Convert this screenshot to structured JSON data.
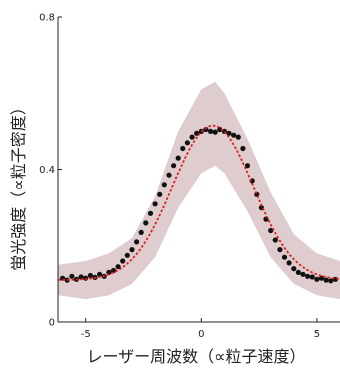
{
  "chart_data": {
    "type": "scatter",
    "title": "",
    "xlabel": "レーザー周波数（∝粒子速度）",
    "ylabel": "蛍光強度（∝粒子密度）",
    "xlim": [
      -6.2,
      6.0
    ],
    "ylim": [
      0,
      0.8
    ],
    "xticks": [
      -5,
      0,
      5
    ],
    "yticks": [
      0,
      0.4,
      0.8
    ],
    "ytick_labels": [
      "0",
      "0.4",
      "0.8"
    ],
    "grid": false,
    "legend": "none",
    "colors": {
      "band": "#d8c3c6",
      "points": "#111111",
      "fit": "#e02020"
    },
    "band": {
      "x": [
        -6.2,
        -5.0,
        -4.0,
        -3.0,
        -2.0,
        -1.0,
        0.0,
        0.6,
        1.0,
        2.0,
        3.0,
        4.0,
        5.0,
        6.0
      ],
      "lower": [
        0.07,
        0.06,
        0.07,
        0.1,
        0.17,
        0.3,
        0.39,
        0.41,
        0.39,
        0.29,
        0.17,
        0.1,
        0.07,
        0.06
      ],
      "upper": [
        0.15,
        0.16,
        0.18,
        0.22,
        0.33,
        0.5,
        0.61,
        0.63,
        0.6,
        0.48,
        0.34,
        0.23,
        0.18,
        0.16
      ]
    },
    "fit": {
      "amplitude": 0.405,
      "center": 0.5,
      "sigma": 1.75,
      "offset": 0.11
    },
    "series": [
      {
        "name": "",
        "x": [
          -6.0,
          -5.8,
          -5.6,
          -5.4,
          -5.2,
          -5.0,
          -4.8,
          -4.6,
          -4.4,
          -4.2,
          -4.0,
          -3.8,
          -3.6,
          -3.4,
          -3.2,
          -3.0,
          -2.8,
          -2.6,
          -2.4,
          -2.2,
          -2.0,
          -1.8,
          -1.6,
          -1.4,
          -1.2,
          -1.0,
          -0.8,
          -0.6,
          -0.4,
          -0.2,
          0.0,
          0.2,
          0.4,
          0.6,
          0.8,
          1.0,
          1.2,
          1.4,
          1.6,
          1.8,
          2.0,
          2.2,
          2.4,
          2.6,
          2.8,
          3.0,
          3.2,
          3.4,
          3.6,
          3.8,
          4.0,
          4.2,
          4.4,
          4.6,
          4.8,
          5.0,
          5.2,
          5.4,
          5.6,
          5.8
        ],
        "y": [
          0.115,
          0.11,
          0.12,
          0.112,
          0.118,
          0.115,
          0.122,
          0.117,
          0.125,
          0.12,
          0.13,
          0.135,
          0.145,
          0.16,
          0.175,
          0.19,
          0.21,
          0.235,
          0.26,
          0.285,
          0.31,
          0.335,
          0.36,
          0.385,
          0.41,
          0.43,
          0.455,
          0.47,
          0.485,
          0.495,
          0.5,
          0.505,
          0.5,
          0.498,
          0.505,
          0.5,
          0.495,
          0.49,
          0.485,
          0.455,
          0.41,
          0.37,
          0.335,
          0.3,
          0.27,
          0.24,
          0.215,
          0.19,
          0.17,
          0.155,
          0.14,
          0.13,
          0.125,
          0.12,
          0.118,
          0.112,
          0.115,
          0.11,
          0.108,
          0.112
        ]
      }
    ]
  }
}
